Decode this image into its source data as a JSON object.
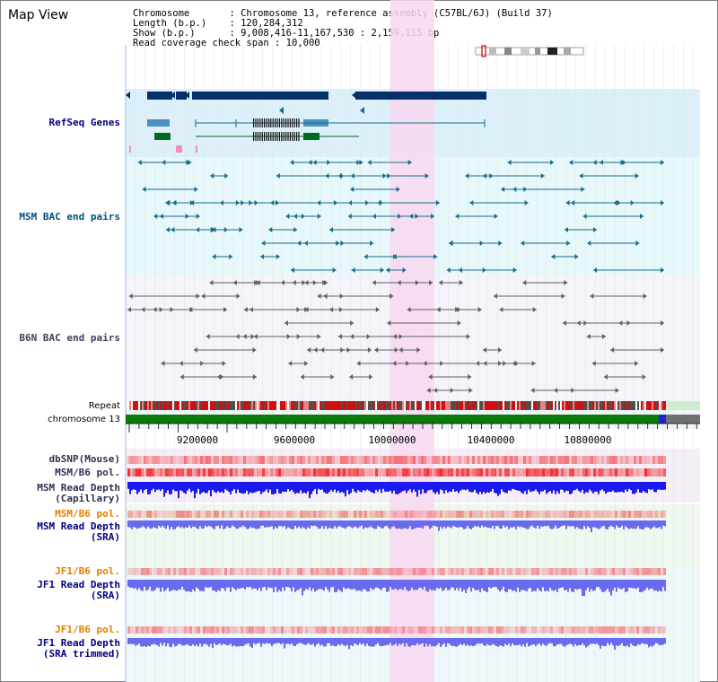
{
  "title": "Map View",
  "info": {
    "line1": "Chromosome       : Chromosome 13, reference assembly (C57BL/6J) (Build 37)",
    "line2": "Length (b.p.)    : 120,284,312",
    "line3": "Show (b.p.)      : 9,008,416-11,167,530 : 2,159,115 bp",
    "line4": "Read coverage check span : 10,000"
  },
  "tracks": {
    "refseq": "RefSeq Genes",
    "msm_bac": "MSM BAC end pairs",
    "b6n_bac": "B6N BAC end pairs",
    "repeat": "Repeat",
    "chromosome": "chromosome 13",
    "dbsnp": "dbSNP(Mouse)",
    "msm_pol": "MSM/B6 pol.",
    "msm_depth_cap": "MSM Read Depth\n(Capillary)",
    "msm_pol2": "MSM/B6 pol.",
    "msm_depth_sra": "MSM Read Depth\n(SRA)",
    "jf1_pol": "JF1/B6 pol.",
    "jf1_depth_sra": "JF1 Read Depth\n(SRA)",
    "jf1_pol2": "JF1/B6 pol.",
    "jf1_depth_trim": "JF1 Read Depth\n(SRA trimmed)"
  },
  "axis": {
    "ticks": [
      "9200000",
      "9600000",
      "10000000",
      "10400000",
      "10800000"
    ]
  },
  "colors": {
    "highlight": "#f8d8f0",
    "refseq_dark": "#06306a",
    "refseq_light": "#4a90c0",
    "refseq_green": "#006a20",
    "bac_msm": "#1a6a8a",
    "bac_b6n": "#606060",
    "chrom_green": "#0a7a0a",
    "pol_red": "#f03030",
    "depth_blue": "#1a1aee",
    "depth_sra": "#6a6aee"
  }
}
